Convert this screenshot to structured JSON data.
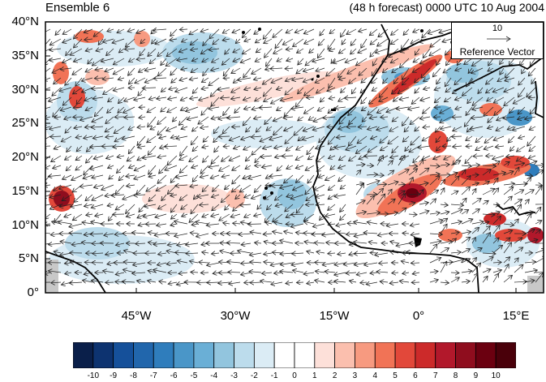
{
  "header": {
    "title_left": "Ensemble 6",
    "title_right": "(48 h forecast) 0000 UTC 10 Aug 2004"
  },
  "reference_vector": {
    "magnitude": "10",
    "label": "Reference Vector"
  },
  "axes": {
    "y_ticks": [
      "40°N",
      "35°N",
      "30°N",
      "25°N",
      "20°N",
      "15°N",
      "10°N",
      "5°N",
      "0°"
    ],
    "x_ticks": [
      "45°W",
      "30°W",
      "15°W",
      "0°",
      "15°E"
    ]
  },
  "map": {
    "lon_range": [
      -62,
      20
    ],
    "lat_range": [
      0,
      40
    ],
    "fields": "shaded anomaly with wind vectors"
  },
  "colorbar": {
    "labels": [
      "-10",
      "-9",
      "-8",
      "-7",
      "-6",
      "-5",
      "-4",
      "-3",
      "-2",
      "-1",
      "0",
      "1",
      "2",
      "3",
      "4",
      "5",
      "6",
      "7",
      "8",
      "9",
      "10"
    ],
    "colors": [
      "#0a1f4a",
      "#0d3370",
      "#15509a",
      "#2166ac",
      "#2f7dbc",
      "#4a96c8",
      "#6aafd6",
      "#92c5de",
      "#bcdcec",
      "#dbecf5",
      "#ffffff",
      "#ffffff",
      "#fde0d9",
      "#fbbfae",
      "#f79a80",
      "#f17356",
      "#e2483a",
      "#cc2a2a",
      "#b2182b",
      "#8f0d1e",
      "#6b0010",
      "#4a000a"
    ]
  }
}
